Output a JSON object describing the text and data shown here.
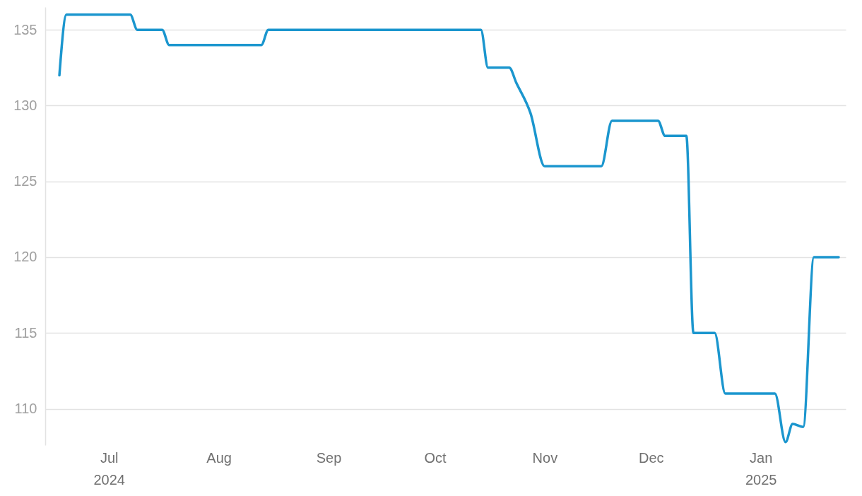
{
  "chart_data": {
    "type": "line",
    "x": [
      "2024-06-17",
      "2024-06-19",
      "2024-07-07",
      "2024-07-09",
      "2024-07-16",
      "2024-07-18",
      "2024-08-13",
      "2024-08-15",
      "2024-10-14",
      "2024-10-16",
      "2024-10-22",
      "2024-10-24",
      "2024-10-28",
      "2024-11-01",
      "2024-11-17",
      "2024-11-20",
      "2024-12-03",
      "2024-12-05",
      "2024-12-11",
      "2024-12-13",
      "2024-12-19",
      "2024-12-22",
      "2025-01-05",
      "2025-01-08",
      "2025-01-10",
      "2025-01-13",
      "2025-01-16",
      "2025-01-23"
    ],
    "series": [
      {
        "color": "#1b96ce",
        "values": [
          132,
          136,
          136,
          135,
          135,
          134,
          134,
          135,
          135,
          132.5,
          132.5,
          131.5,
          129.5,
          126,
          126,
          129,
          129,
          128,
          128,
          115,
          115,
          111,
          111,
          107.8,
          109,
          108.8,
          120,
          120
        ]
      }
    ],
    "xlim": [
      "2024-06-13",
      "2025-01-25"
    ],
    "xticks": [
      {
        "value": "2024-07-01",
        "label": "Jul\n2024"
      },
      {
        "value": "2024-08-01",
        "label": "Aug"
      },
      {
        "value": "2024-09-01",
        "label": "Sep"
      },
      {
        "value": "2024-10-01",
        "label": "Oct"
      },
      {
        "value": "2024-11-01",
        "label": "Nov"
      },
      {
        "value": "2024-12-01",
        "label": "Dec"
      },
      {
        "value": "2025-01-01",
        "label": "Jan\n2025"
      }
    ],
    "ylim": [
      107.6,
      136.5
    ],
    "yticks": [
      110,
      115,
      120,
      125,
      130,
      135
    ],
    "grid": "y",
    "line_style": "solid"
  }
}
